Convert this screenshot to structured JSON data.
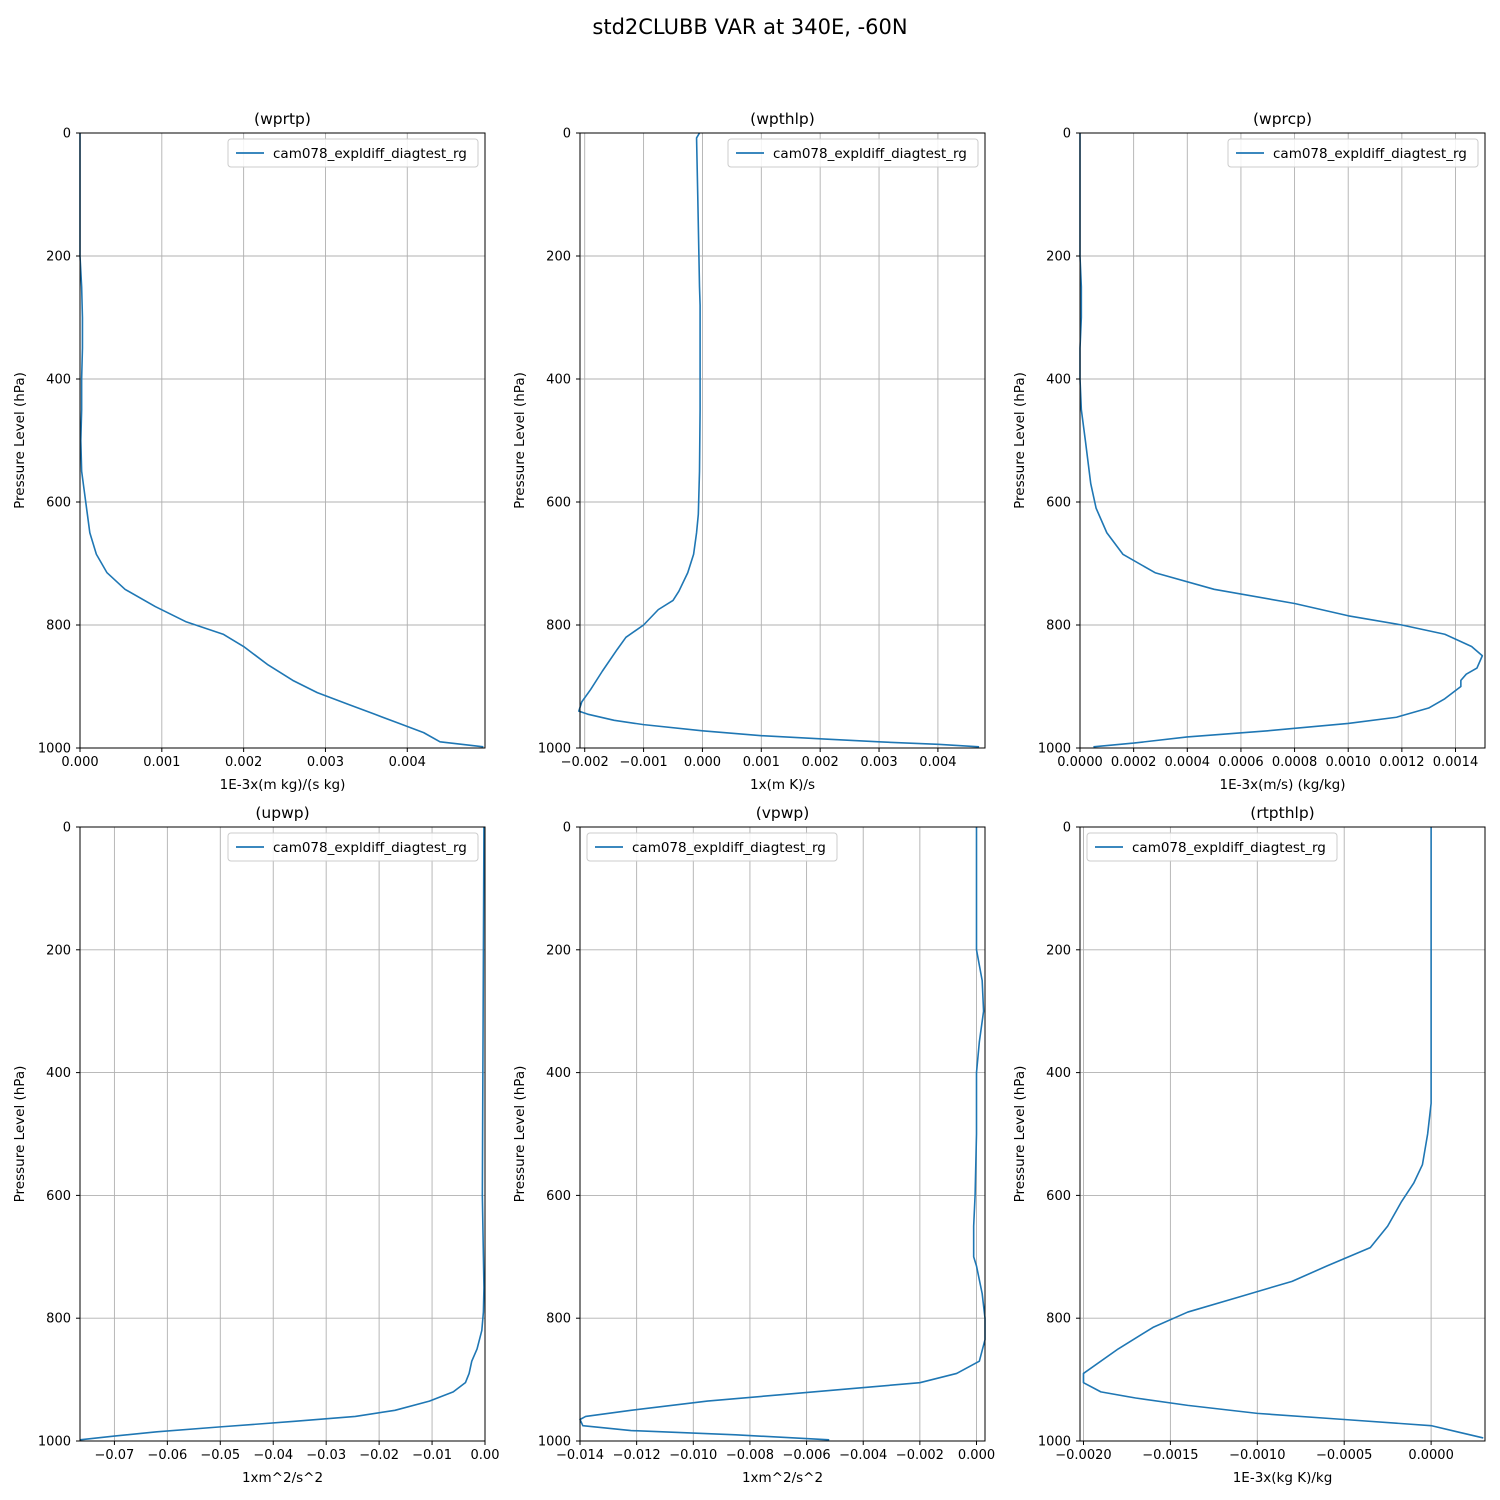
{
  "figure": {
    "title": "std2CLUBB VAR at 340E, -60N"
  },
  "colors": {
    "series": "#1f77b4",
    "grid": "#b0b0b0",
    "axis": "#000000"
  },
  "chart_data": [
    {
      "type": "line",
      "title": "(wprtp)",
      "xlabel": "1E-3x(m kg)/(s kg)",
      "ylabel": "Pressure Level (hPa)",
      "xlim": [
        0,
        0.00495
      ],
      "ylim": [
        1000,
        0
      ],
      "legend": "top-right",
      "grid": true,
      "xticks": [
        0,
        0.001,
        0.002,
        0.003,
        0.004
      ],
      "xtick_labels": [
        "0.000",
        "0.001",
        "0.002",
        "0.003",
        "0.004"
      ],
      "yticks": [
        0,
        200,
        400,
        600,
        800,
        1000
      ],
      "ytick_labels": [
        "0",
        "200",
        "400",
        "600",
        "800",
        "1000"
      ],
      "series": [
        {
          "name": "cam078_expldiff_diagtest_rg",
          "x": [
            0,
            0,
            2e-05,
            3e-05,
            3e-05,
            2e-05,
            2e-05,
            1e-05,
            2e-05,
            5e-05,
            8e-05,
            0.00012,
            0.0002,
            0.00033,
            0.00055,
            0.00092,
            0.0013,
            0.00175,
            0.002,
            0.0023,
            0.0026,
            0.0029,
            0.0033,
            0.0036,
            0.0039,
            0.0042,
            0.0044,
            0.00493
          ],
          "y": [
            0,
            200,
            250,
            300,
            350,
            400,
            450,
            500,
            550,
            580,
            610,
            650,
            685,
            715,
            742,
            770,
            795,
            815,
            835,
            865,
            890,
            910,
            930,
            945,
            960,
            975,
            990,
            998
          ]
        }
      ]
    },
    {
      "type": "line",
      "title": "(wpthlp)",
      "xlabel": "1x(m K)/s",
      "ylabel": "Pressure Level (hPa)",
      "xlim": [
        -0.00208,
        0.0048
      ],
      "ylim": [
        1000,
        0
      ],
      "legend": "top-right",
      "grid": true,
      "xticks": [
        -0.002,
        -0.001,
        0,
        0.001,
        0.002,
        0.003,
        0.004
      ],
      "xtick_labels": [
        "−0.002",
        "−0.001",
        "0.000",
        "0.001",
        "0.002",
        "0.003",
        "0.004"
      ],
      "yticks": [
        0,
        200,
        400,
        600,
        800,
        1000
      ],
      "ytick_labels": [
        "0",
        "200",
        "400",
        "600",
        "800",
        "1000"
      ],
      "series": [
        {
          "name": "cam078_expldiff_diagtest_rg",
          "x": [
            -5e-05,
            -0.0001,
            -8e-05,
            -6e-05,
            -5e-05,
            -4e-05,
            -4e-05,
            -4e-05,
            -5e-05,
            -7e-05,
            -0.0001,
            -0.00015,
            -0.00025,
            -0.0004,
            -0.0005,
            -0.00075,
            -0.001,
            -0.0013,
            -0.00145,
            -0.0017,
            -0.0019,
            -0.00205,
            -0.0021,
            -0.00195,
            -0.0015,
            -0.001,
            0,
            0.001,
            0.002,
            0.003,
            0.004,
            0.0047
          ],
          "y": [
            0,
            8,
            100,
            200,
            250,
            280,
            350,
            450,
            550,
            620,
            650,
            685,
            715,
            745,
            760,
            775,
            800,
            820,
            840,
            875,
            905,
            925,
            940,
            945,
            955,
            962,
            972,
            980,
            985,
            990,
            994,
            998
          ]
        }
      ]
    },
    {
      "type": "line",
      "title": "(wprcp)",
      "xlabel": "1E-3x(m/s) (kg/kg)",
      "ylabel": "Pressure Level (hPa)",
      "xlim": [
        0,
        0.00151
      ],
      "ylim": [
        1000,
        0
      ],
      "legend": "top-right",
      "grid": true,
      "xticks": [
        0,
        0.0002,
        0.0004,
        0.0006,
        0.0008,
        0.001,
        0.0012,
        0.0014
      ],
      "xtick_labels": [
        "0.0000",
        "0.0002",
        "0.0004",
        "0.0006",
        "0.0008",
        "0.0010",
        "0.0012",
        "0.0014"
      ],
      "yticks": [
        0,
        200,
        400,
        600,
        800,
        1000
      ],
      "ytick_labels": [
        "0",
        "200",
        "400",
        "600",
        "800",
        "1000"
      ],
      "series": [
        {
          "name": "cam078_expldiff_diagtest_rg",
          "x": [
            0,
            0,
            5e-06,
            5e-06,
            0,
            0,
            5e-06,
            2e-05,
            4e-05,
            6e-05,
            0.0001,
            0.00016,
            0.00028,
            0.0005,
            0.0008,
            0.001,
            0.0012,
            0.00136,
            0.00146,
            0.0015,
            0.00148,
            0.00144,
            0.00142,
            0.00142,
            0.00136,
            0.0013,
            0.00118,
            0.001,
            0.0007,
            0.0004,
            0.0002,
            5e-05
          ],
          "y": [
            0,
            200,
            250,
            300,
            350,
            400,
            450,
            500,
            570,
            610,
            650,
            685,
            715,
            742,
            765,
            785,
            800,
            815,
            835,
            850,
            870,
            880,
            890,
            900,
            920,
            935,
            950,
            960,
            972,
            982,
            992,
            998
          ]
        }
      ]
    },
    {
      "type": "line",
      "title": "(upwp)",
      "xlabel": "1xm^2/s^2",
      "ylabel": "Pressure Level (hPa)",
      "xlim": [
        -0.0765,
        0.0
      ],
      "ylim": [
        1000,
        0
      ],
      "legend": "top-right",
      "grid": true,
      "xticks": [
        -0.07,
        -0.06,
        -0.05,
        -0.04,
        -0.03,
        -0.02,
        -0.01,
        0
      ],
      "xtick_labels": [
        "−0.07",
        "−0.06",
        "−0.05",
        "−0.04",
        "−0.03",
        "−0.02",
        "−0.01",
        "0.00"
      ],
      "yticks": [
        0,
        200,
        400,
        600,
        800,
        1000
      ],
      "ytick_labels": [
        "0",
        "200",
        "400",
        "600",
        "800",
        "1000"
      ],
      "series": [
        {
          "name": "cam078_expldiff_diagtest_rg",
          "x": [
            -0.0002,
            -0.0003,
            -0.0004,
            -0.0005,
            -0.0003,
            -0.0002,
            -0.0003,
            -0.0006,
            -0.0015,
            -0.0025,
            -0.003,
            -0.0037,
            -0.006,
            -0.0105,
            -0.017,
            -0.0245,
            -0.036,
            -0.05,
            -0.062,
            -0.07,
            -0.0765
          ],
          "y": [
            0,
            200,
            400,
            600,
            700,
            750,
            790,
            820,
            850,
            870,
            890,
            905,
            920,
            935,
            950,
            960,
            968,
            977,
            985,
            992,
            998
          ]
        }
      ]
    },
    {
      "type": "line",
      "title": "(vpwp)",
      "xlabel": "1xm^2/s^2",
      "ylabel": "Pressure Level (hPa)",
      "xlim": [
        -0.014,
        0.0003
      ],
      "ylim": [
        1000,
        0
      ],
      "legend": "top-left",
      "grid": true,
      "xticks": [
        -0.014,
        -0.012,
        -0.01,
        -0.008,
        -0.006,
        -0.004,
        -0.002,
        0
      ],
      "xtick_labels": [
        "−0.014",
        "−0.012",
        "−0.010",
        "−0.008",
        "−0.006",
        "−0.004",
        "−0.002",
        "0.000"
      ],
      "yticks": [
        0,
        200,
        400,
        600,
        800,
        1000
      ],
      "ytick_labels": [
        "0",
        "200",
        "400",
        "600",
        "800",
        "1000"
      ],
      "series": [
        {
          "name": "cam078_expldiff_diagtest_rg",
          "x": [
            0,
            0,
            0,
            0.0002,
            0.00025,
            0.0001,
            0,
            0,
            -5e-05,
            -0.0001,
            -0.0001,
            0,
            0.0002,
            0.0003,
            0.0003,
            0.0001,
            -0.0007,
            -0.002,
            -0.0045,
            -0.007,
            -0.0095,
            -0.0122,
            -0.0138,
            -0.014,
            -0.0139,
            -0.0122,
            -0.0085,
            -0.0052
          ],
          "y": [
            0,
            100,
            200,
            250,
            300,
            350,
            400,
            500,
            600,
            650,
            700,
            715,
            760,
            800,
            835,
            870,
            890,
            905,
            915,
            925,
            935,
            950,
            960,
            965,
            975,
            983,
            990,
            998
          ]
        }
      ]
    },
    {
      "type": "line",
      "title": "(rtpthlp)",
      "xlabel": "1E-3x(kg K)/kg",
      "ylabel": "Pressure Level (hPa)",
      "xlim": [
        -0.00202,
        0.00031
      ],
      "ylim": [
        1000,
        0
      ],
      "legend": "top-left",
      "grid": true,
      "xticks": [
        -0.002,
        -0.0015,
        -0.001,
        -0.0005,
        0
      ],
      "xtick_labels": [
        "−0.0020",
        "−0.0015",
        "−0.0010",
        "−0.0005",
        "0.0000"
      ],
      "yticks": [
        0,
        200,
        400,
        600,
        800,
        1000
      ],
      "ytick_labels": [
        "0",
        "200",
        "400",
        "600",
        "800",
        "1000"
      ],
      "series": [
        {
          "name": "cam078_expldiff_diagtest_rg",
          "x": [
            0,
            0,
            0,
            -2e-05,
            -5e-05,
            -0.0001,
            -0.00017,
            -0.00025,
            -0.00035,
            -0.0006,
            -0.0008,
            -0.0011,
            -0.0014,
            -0.0016,
            -0.0018,
            -0.002,
            -0.002,
            -0.002,
            -0.0019,
            -0.0017,
            -0.0014,
            -0.001,
            -0.0005,
            0,
            0.00015,
            0.0003
          ],
          "y": [
            0,
            200,
            450,
            500,
            550,
            580,
            610,
            650,
            685,
            715,
            740,
            765,
            790,
            815,
            850,
            890,
            900,
            905,
            920,
            930,
            942,
            955,
            965,
            975,
            985,
            995
          ]
        }
      ]
    }
  ]
}
